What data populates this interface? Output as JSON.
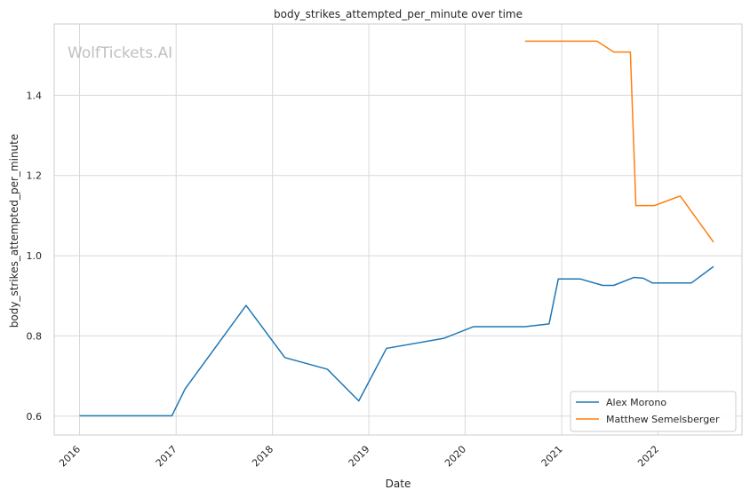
{
  "chart_data": {
    "type": "line",
    "title": "body_strikes_attempted_per_minute over time",
    "xlabel": "Date",
    "ylabel": "body_strikes_attempted_per_minute",
    "watermark": "WolfTickets.AI",
    "x_ticks": [
      "2016",
      "2017",
      "2018",
      "2019",
      "2020",
      "2021",
      "2022"
    ],
    "y_ticks": [
      "0.6",
      "0.8",
      "1.0",
      "1.2",
      "1.4"
    ],
    "xlim": [
      "2015-09-27",
      "2022-11-15"
    ],
    "ylim": [
      0.553,
      1.578
    ],
    "grid": true,
    "legend_position": "lower-right",
    "series": [
      {
        "name": "Alex Morono",
        "color": "#1f77b4",
        "points": [
          [
            "2016-01-01",
            0.601
          ],
          [
            "2016-12-16",
            0.601
          ],
          [
            "2017-02-04",
            0.668
          ],
          [
            "2017-09-23",
            0.876
          ],
          [
            "2018-02-17",
            0.746
          ],
          [
            "2018-07-28",
            0.717
          ],
          [
            "2018-11-24",
            0.638
          ],
          [
            "2019-03-09",
            0.769
          ],
          [
            "2019-10-12",
            0.794
          ],
          [
            "2020-02-01",
            0.823
          ],
          [
            "2020-08-15",
            0.823
          ],
          [
            "2020-11-14",
            0.83
          ],
          [
            "2020-12-19",
            0.942
          ],
          [
            "2021-03-13",
            0.942
          ],
          [
            "2021-06-05",
            0.926
          ],
          [
            "2021-07-17",
            0.926
          ],
          [
            "2021-10-02",
            0.946
          ],
          [
            "2021-11-06",
            0.944
          ],
          [
            "2021-12-11",
            0.932
          ],
          [
            "2022-05-07",
            0.932
          ],
          [
            "2022-07-30",
            0.973
          ]
        ]
      },
      {
        "name": "Matthew Semelsberger",
        "color": "#ff7f0e",
        "points": [
          [
            "2020-08-15",
            1.535
          ],
          [
            "2021-05-15",
            1.535
          ],
          [
            "2021-07-17",
            1.508
          ],
          [
            "2021-09-18",
            1.508
          ],
          [
            "2021-10-09",
            1.125
          ],
          [
            "2021-12-18",
            1.125
          ],
          [
            "2022-03-26",
            1.149
          ],
          [
            "2022-07-30",
            1.034
          ]
        ]
      }
    ]
  }
}
